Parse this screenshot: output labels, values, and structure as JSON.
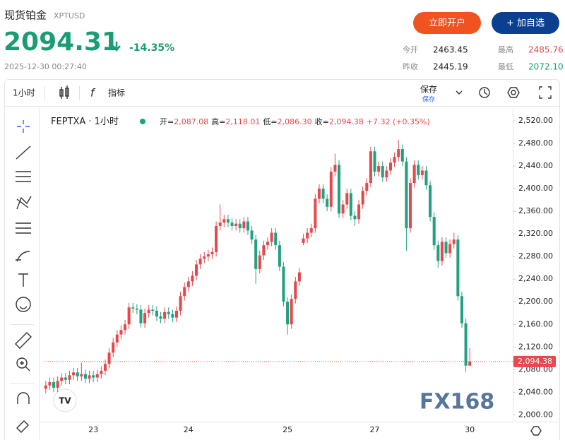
{
  "header": {
    "title": "现货铂金",
    "symbol": "XPTUSD",
    "price": "2094.31",
    "change": "-14.35%",
    "time": "2025-12-30 00:27:40",
    "open_account": "立即开户",
    "add_watchlist": "+ 加自选",
    "stats": [
      {
        "label": "今开",
        "value": "2463.45"
      },
      {
        "label": "最高",
        "value": "2485.76"
      },
      {
        "label": "昨收",
        "value": "2445.19"
      },
      {
        "label": "最低",
        "value": "2072.10"
      }
    ]
  },
  "toolbar": {
    "interval": "1小时",
    "indicators": "指标",
    "save": "保存",
    "save_sub": "保存"
  },
  "chart_data": {
    "type": "candlestick",
    "legend": {
      "symbol": "FEPTXA · 1小时",
      "open_label": "开=",
      "open": "2,087.08",
      "high_label": "高=",
      "high": "2,118.01",
      "low_label": "低=",
      "low": "2,086.30",
      "close_label": "收=",
      "close": "2,094.38",
      "change": "+7.32 (+0.35%)"
    },
    "price_tag": "2,094.38",
    "watermark": "FX168",
    "up_color": "#e5484d",
    "down_color": "#22a07f",
    "categories": [
      null,
      null,
      null,
      null,
      null,
      null,
      null,
      null,
      null,
      null,
      null,
      null,
      "23",
      null,
      null,
      null,
      null,
      null,
      null,
      null,
      null,
      null,
      null,
      null,
      null,
      null,
      null,
      null,
      null,
      null,
      null,
      null,
      null,
      null,
      null,
      null,
      "24",
      null,
      null,
      null,
      null,
      null,
      null,
      null,
      null,
      null,
      null,
      null,
      null,
      null,
      null,
      null,
      null,
      null,
      null,
      null,
      null,
      null,
      null,
      null,
      null,
      "25",
      null,
      null,
      null,
      null,
      null,
      null,
      null,
      null,
      null,
      null,
      null,
      null,
      null,
      null,
      null,
      null,
      null,
      null,
      null,
      null,
      null,
      "27",
      null,
      null,
      null,
      null,
      null,
      null,
      null,
      null,
      null,
      null,
      null,
      null,
      null,
      null,
      null,
      null,
      null,
      null,
      null,
      null,
      null,
      null,
      null,
      "30"
    ],
    "open": [
      2046,
      2052,
      2058,
      2048,
      2060,
      2066,
      2062,
      2070,
      2075,
      2068,
      2072,
      2064,
      2070,
      2066,
      2072,
      2078,
      2090,
      2110,
      2128,
      2142,
      2150,
      2160,
      2190,
      2188,
      2186,
      2162,
      2180,
      2186,
      2184,
      2174,
      2170,
      2182,
      2178,
      2172,
      2184,
      2210,
      2226,
      2236,
      2246,
      2266,
      2276,
      2280,
      2284,
      2288,
      2334,
      2340,
      2346,
      2340,
      2334,
      2338,
      2330,
      2342,
      2326,
      2310,
      2258,
      2282,
      2300,
      2306,
      2322,
      2300,
      2262,
      2200,
      2160,
      2205,
      2236,
      2304,
      2312,
      2322,
      2330,
      2382,
      2400,
      2382,
      2368,
      2430,
      2442,
      2356,
      2372,
      2392,
      2352,
      2346,
      2372,
      2396,
      2410,
      2466,
      2430,
      2440,
      2420,
      2432,
      2446,
      2456,
      2470,
      2448,
      2330,
      2410,
      2442,
      2424,
      2432,
      2406,
      2350,
      2300,
      2272,
      2306,
      2286,
      2302,
      2310,
      2210,
      2162,
      2087.08
    ],
    "high": [
      2060,
      2066,
      2066,
      2068,
      2074,
      2074,
      2078,
      2083,
      2083,
      2092,
      2080,
      2078,
      2078,
      2080,
      2086,
      2098,
      2118,
      2136,
      2150,
      2158,
      2168,
      2198,
      2198,
      2196,
      2194,
      2188,
      2194,
      2194,
      2192,
      2182,
      2190,
      2190,
      2186,
      2192,
      2218,
      2234,
      2244,
      2254,
      2274,
      2284,
      2288,
      2292,
      2296,
      2342,
      2372,
      2354,
      2354,
      2348,
      2346,
      2346,
      2350,
      2350,
      2334,
      2318,
      2290,
      2308,
      2314,
      2330,
      2330,
      2308,
      2270,
      2208,
      2213,
      2244,
      2260,
      2320,
      2330,
      2338,
      2390,
      2408,
      2408,
      2390,
      2438,
      2462,
      2450,
      2380,
      2400,
      2400,
      2360,
      2380,
      2404,
      2418,
      2474,
      2474,
      2448,
      2448,
      2440,
      2454,
      2464,
      2486,
      2478,
      2456,
      2418,
      2450,
      2450,
      2440,
      2440,
      2414,
      2358,
      2308,
      2314,
      2314,
      2310,
      2322,
      2318,
      2218,
      2170,
      2118.01
    ],
    "low": [
      2038,
      2044,
      2040,
      2040,
      2052,
      2054,
      2054,
      2062,
      2060,
      2060,
      2056,
      2056,
      2058,
      2058,
      2064,
      2070,
      2082,
      2102,
      2120,
      2134,
      2142,
      2152,
      2180,
      2178,
      2154,
      2154,
      2172,
      2176,
      2166,
      2162,
      2162,
      2170,
      2164,
      2164,
      2176,
      2202,
      2218,
      2228,
      2238,
      2258,
      2268,
      2272,
      2276,
      2280,
      2326,
      2332,
      2332,
      2326,
      2326,
      2322,
      2322,
      2318,
      2302,
      2232,
      2250,
      2274,
      2292,
      2298,
      2292,
      2254,
      2192,
      2142,
      2152,
      2197,
      2228,
      2300,
      2304,
      2314,
      2322,
      2374,
      2374,
      2360,
      2360,
      2422,
      2348,
      2348,
      2364,
      2344,
      2334,
      2338,
      2364,
      2388,
      2402,
      2422,
      2422,
      2412,
      2412,
      2424,
      2438,
      2448,
      2440,
      2290,
      2322,
      2402,
      2416,
      2416,
      2398,
      2342,
      2292,
      2260,
      2264,
      2278,
      2278,
      2294,
      2202,
      2154,
      2076,
      2086.3
    ],
    "close": [
      2052,
      2058,
      2048,
      2060,
      2066,
      2062,
      2070,
      2075,
      2068,
      2072,
      2064,
      2070,
      2066,
      2072,
      2078,
      2090,
      2110,
      2128,
      2142,
      2150,
      2160,
      2190,
      2188,
      2186,
      2162,
      2180,
      2186,
      2184,
      2174,
      2170,
      2182,
      2178,
      2172,
      2184,
      2210,
      2226,
      2236,
      2246,
      2266,
      2276,
      2280,
      2284,
      2288,
      2334,
      2340,
      2346,
      2340,
      2334,
      2338,
      2330,
      2342,
      2326,
      2310,
      2258,
      2282,
      2300,
      2306,
      2322,
      2300,
      2262,
      2200,
      2160,
      2205,
      2236,
      2252,
      2312,
      2322,
      2330,
      2382,
      2400,
      2382,
      2368,
      2430,
      2442,
      2356,
      2372,
      2392,
      2352,
      2346,
      2372,
      2396,
      2410,
      2466,
      2430,
      2440,
      2420,
      2432,
      2446,
      2456,
      2470,
      2448,
      2330,
      2410,
      2442,
      2424,
      2432,
      2406,
      2350,
      2300,
      2272,
      2306,
      2286,
      2302,
      2310,
      2210,
      2162,
      2087.08,
      2094.38
    ],
    "ylim": [
      1988,
      2540
    ],
    "yticks": [
      {
        "value": 2000,
        "label": "2,000.00"
      },
      {
        "value": 2040,
        "label": "2,040.00"
      },
      {
        "value": 2080,
        "label": "2,080.00"
      },
      {
        "value": 2120,
        "label": "2,120.00"
      },
      {
        "value": 2160,
        "label": "2,160.00"
      },
      {
        "value": 2200,
        "label": "2,200.00"
      },
      {
        "value": 2240,
        "label": "2,240.00"
      },
      {
        "value": 2280,
        "label": "2,280.00"
      },
      {
        "value": 2320,
        "label": "2,320.00"
      },
      {
        "value": 2360,
        "label": "2,360.00"
      },
      {
        "value": 2400,
        "label": "2,400.00"
      },
      {
        "value": 2440,
        "label": "2,440.00"
      },
      {
        "value": 2480,
        "label": "2,480.00"
      },
      {
        "value": 2520,
        "label": "2,520.00"
      }
    ]
  }
}
